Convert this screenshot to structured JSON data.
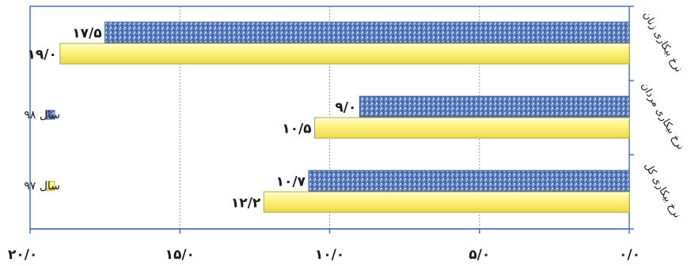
{
  "chart_data": {
    "type": "bar",
    "orientation": "horizontal",
    "x_axis_reversed": true,
    "categories": [
      "نرخ بیکاری کل",
      "نرخ بیکاری مردان",
      "نرخ بیکاری زنان"
    ],
    "series": [
      {
        "name": "سال ۹۸",
        "values": [
          10.7,
          9.0,
          17.5
        ],
        "color": "#5b7fc0",
        "pattern": "textured-blue"
      },
      {
        "name": "سال ۹۷",
        "values": [
          12.2,
          10.5,
          19.0
        ],
        "color": "#fff27a",
        "pattern": "bevel-yellow"
      }
    ],
    "value_labels": {
      "سال ۹۸": [
        "۱۰/۷",
        "۹/۰",
        "۱۷/۵"
      ],
      "سال ۹۷": [
        "۱۲/۲",
        "۱۰/۵",
        "۱۹/۰"
      ]
    },
    "x_ticks": [
      0,
      5,
      10,
      15,
      20
    ],
    "x_tick_labels": [
      "۰/۰",
      "۵/۰",
      "۱۰/۰",
      "۱۵/۰",
      "۲۰/۰"
    ],
    "xlim": [
      0,
      20
    ],
    "grid": true,
    "legend_position": "left",
    "frame_color": "#4a72b8"
  }
}
